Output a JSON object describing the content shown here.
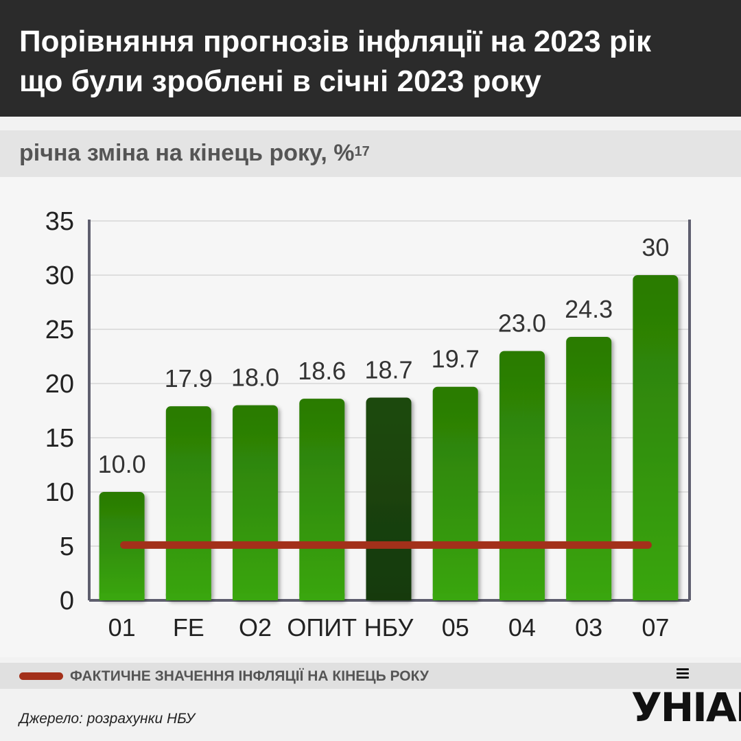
{
  "header": {
    "title_line1": "Порівняння прогнозів інфляції на 2023 рік",
    "title_line2": "що були зроблені в січні 2023 року"
  },
  "subtitle": {
    "text": "річна зміна на кінець року, %",
    "footnote": "17"
  },
  "legend": {
    "label": "ФАКТИЧНЕ ЗНАЧЕННЯ ІНФЛЯЦІЇ НА КІНЕЦЬ РОКУ",
    "line_color": "#a3301a"
  },
  "source": "Джерело: розрахунки НБУ",
  "logo": {
    "text": "УНІАН",
    "icon": "microphone-bars-icon"
  },
  "chart_data": {
    "type": "bar",
    "categories": [
      "01",
      "FE",
      "O2",
      "ОПИТ",
      "НБУ",
      "05",
      "04",
      "03",
      "07"
    ],
    "values": [
      10.0,
      17.9,
      18.0,
      18.6,
      18.7,
      19.7,
      23.0,
      24.3,
      30
    ],
    "value_labels": [
      "10.0",
      "17.9",
      "18.0",
      "18.6",
      "18.7",
      "19.7",
      "23.0",
      "24.3",
      "30"
    ],
    "highlight_category": "НБУ",
    "ylim": [
      0,
      35
    ],
    "yticks": [
      0,
      5,
      10,
      15,
      20,
      25,
      30,
      35
    ],
    "reference_line": {
      "value": 5.1
    },
    "grid": true,
    "colors": {
      "bar_top": "#2a7a04",
      "bar_bottom": "#3aa60f",
      "highlight_top": "#1e4a10",
      "highlight_bottom": "#163a0c",
      "axis": "#5e5e6e",
      "grid": "#dedede"
    }
  }
}
